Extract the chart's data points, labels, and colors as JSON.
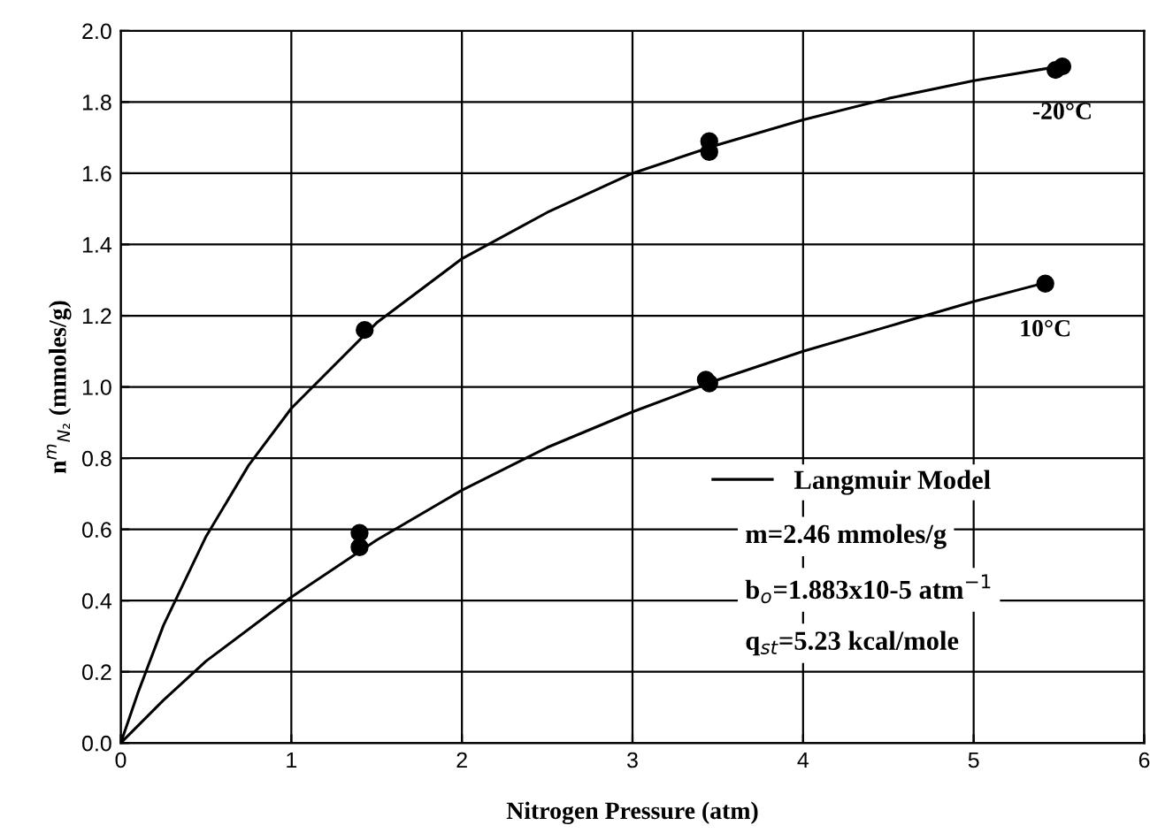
{
  "chart_data": {
    "type": "line",
    "xlabel": "Nitrogen Pressure (atm)",
    "ylabel": "n$^{m}$$_{N₂}$ (mmoles/g)",
    "xlim": [
      0,
      6
    ],
    "ylim": [
      0,
      2.0
    ],
    "xticks": [
      0,
      1,
      2,
      3,
      4,
      5,
      6
    ],
    "yticks": [
      {
        "value": 0,
        "label": "0.0"
      },
      {
        "value": 0.2,
        "label": "0.2"
      },
      {
        "value": 0.4,
        "label": "0.4"
      },
      {
        "value": 0.6,
        "label": "0.6"
      },
      {
        "value": 0.8,
        "label": "0.8"
      },
      {
        "value": 1.0,
        "label": "1.0"
      },
      {
        "value": 1.2,
        "label": "1.2"
      },
      {
        "value": 1.4,
        "label": "1.4"
      },
      {
        "value": 1.6,
        "label": "1.6"
      },
      {
        "value": 1.8,
        "label": "1.8"
      },
      {
        "value": 2.0,
        "label": "2.0"
      }
    ],
    "grid": true,
    "legend": "bottom right",
    "series": [
      {
        "name": "-20°C",
        "type": "scatter",
        "marker": "circle",
        "color": "#000000",
        "x": [
          1.43,
          3.45,
          3.45,
          5.48,
          5.52
        ],
        "values": [
          1.16,
          1.69,
          1.66,
          1.89,
          1.9
        ]
      },
      {
        "name": "10°C",
        "type": "scatter",
        "marker": "circle",
        "color": "#000000",
        "x": [
          1.4,
          1.4,
          3.43,
          3.45,
          5.42
        ],
        "values": [
          0.59,
          0.55,
          1.02,
          1.01,
          1.29
        ]
      },
      {
        "name": "Langmuir Model",
        "color": "#000000",
        "x": [
          0,
          0.1,
          0.25,
          0.5,
          0.75,
          1,
          1.5,
          2,
          2.5,
          3,
          3.5,
          4,
          4.5,
          5,
          5.5
        ],
        "values": [
          0,
          0.14,
          0.33,
          0.58,
          0.78,
          0.94,
          1.18,
          1.36,
          1.49,
          1.6,
          1.68,
          1.75,
          1.81,
          1.86,
          1.9
        ]
      },
      {
        "color": "#000000",
        "x": [
          0,
          0.25,
          0.5,
          1,
          1.5,
          2,
          2.5,
          3,
          3.5,
          4,
          4.5,
          5,
          5.4
        ],
        "values": [
          0,
          0.12,
          0.23,
          0.41,
          0.57,
          0.71,
          0.83,
          0.93,
          1.02,
          1.1,
          1.17,
          1.24,
          1.29
        ]
      }
    ],
    "annotations": [
      "m=2.46 mmoles/g",
      "b$_{o}$=1.883x10-5 atm$^{−1}$",
      "q$_{st}$=5.23 kcal/mole"
    ]
  }
}
